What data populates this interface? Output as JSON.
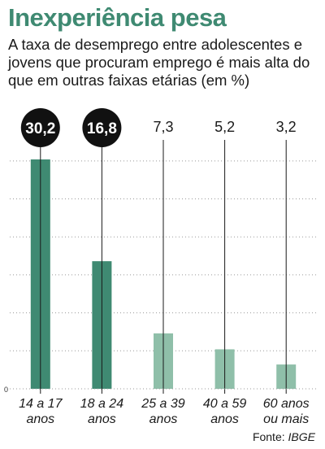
{
  "title": "Inexperiência pesa",
  "subtitle": "A taxa de desemprego entre adolescentes e jovens que procuram emprego é mais alta do que em outras faixas etárias (em %)",
  "source_label": "Fonte:",
  "source_name": "IBGE",
  "chart_data": {
    "type": "bar",
    "categories": [
      "14 a 17 anos",
      "18 a 24 anos",
      "25 a 39 anos",
      "40 a 59 anos",
      "60 anos ou mais"
    ],
    "category_lines": [
      [
        "14 a 17",
        "anos"
      ],
      [
        "18 a 24",
        "anos"
      ],
      [
        "25 a 39",
        "anos"
      ],
      [
        "40 a 59",
        "anos"
      ],
      [
        "60 anos",
        "ou mais"
      ]
    ],
    "values": [
      30.2,
      16.8,
      7.3,
      5.2,
      3.2
    ],
    "value_labels": [
      "30,2",
      "16,8",
      "7,3",
      "5,2",
      "3,2"
    ],
    "highlighted": [
      true,
      true,
      false,
      false,
      false
    ],
    "ylim": [
      0,
      35
    ],
    "y_tick_labels": [
      "0"
    ],
    "grid": "dotted horizontal",
    "colors": {
      "highlight": "#3f8a72",
      "normal": "#8fbfa9",
      "badge": "#111111",
      "title": "#3f8a72"
    }
  }
}
